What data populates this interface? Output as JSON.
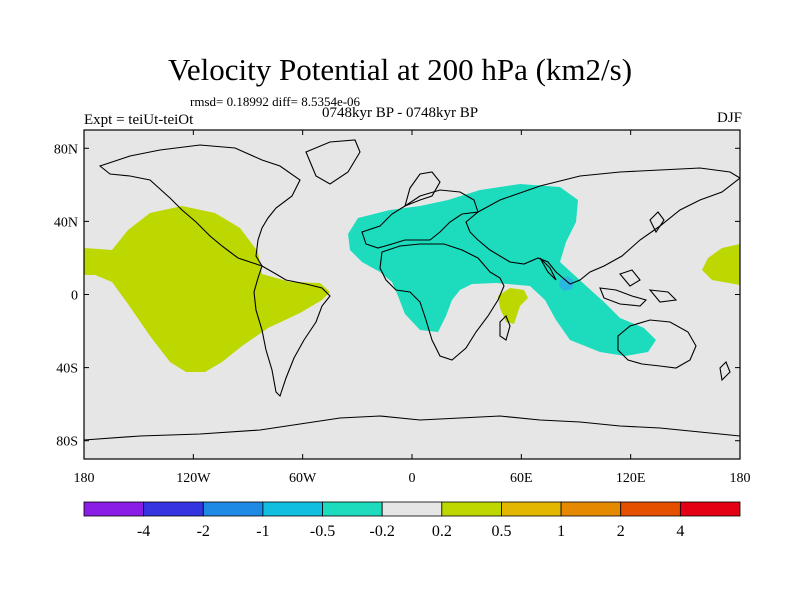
{
  "title": "Velocity Potential at 200 hPa (km2/s)",
  "stats": "rmsd= 0.18992 diff= 8.5354e-06",
  "experiment": "Expt = teiUt-teiOt",
  "period": "0748kyr BP - 0748kyr BP",
  "season": "DJF",
  "colors": {
    "background_map": "#e6e6e6",
    "positive_fill": "#bcd800",
    "negative_fill": "#1ddcbe",
    "deep_negative_fill": "#2bb6e0",
    "coast": "#000000"
  },
  "axes": {
    "x_ticks": [
      {
        "value": -180,
        "label": "180"
      },
      {
        "value": -120,
        "label": "120W"
      },
      {
        "value": -60,
        "label": "60W"
      },
      {
        "value": 0,
        "label": "0"
      },
      {
        "value": 60,
        "label": "60E"
      },
      {
        "value": 120,
        "label": "120E"
      },
      {
        "value": 180,
        "label": "180"
      }
    ],
    "y_ticks": [
      {
        "value": 80,
        "label": "80N"
      },
      {
        "value": 40,
        "label": "40N"
      },
      {
        "value": 0,
        "label": "0"
      },
      {
        "value": -40,
        "label": "40S"
      },
      {
        "value": -80,
        "label": "80S"
      }
    ],
    "lon_range": [
      -180,
      180
    ],
    "lat_range": [
      -90,
      90
    ]
  },
  "colorbar": {
    "colors": [
      "#8a1ee6",
      "#3434e0",
      "#1e8ae6",
      "#12bedf",
      "#1ddcbe",
      "#e6e6e6",
      "#bcd800",
      "#e3b600",
      "#e58a00",
      "#e55000",
      "#e40014"
    ],
    "labels": [
      "-4",
      "-2",
      "-1",
      "-0.5",
      "-0.2",
      "0.2",
      "0.5",
      "1",
      "2",
      "4"
    ]
  }
}
